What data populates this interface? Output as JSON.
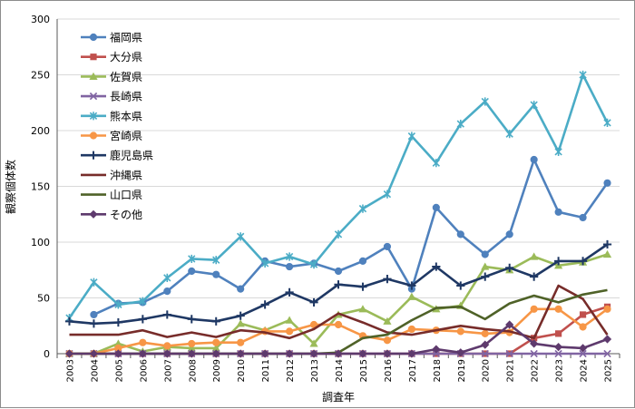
{
  "chart_data": {
    "type": "line",
    "xlabel": "調査年",
    "ylabel": "観察個体数",
    "ylim": [
      0,
      300
    ],
    "y_ticks": [
      0,
      50,
      100,
      150,
      200,
      250,
      300
    ],
    "grid": "horizontal",
    "legend_position": "top-left",
    "x": [
      "2003",
      "2004",
      "2005",
      "2006",
      "2007",
      "2008",
      "2009",
      "2010",
      "2011",
      "2012",
      "2013",
      "2014",
      "2015",
      "2016",
      "2017",
      "2018",
      "2019",
      "2020",
      "2021",
      "2022",
      "2023",
      "2024",
      "2025"
    ],
    "series": [
      {
        "name": "福岡県",
        "color": "#4f81bd",
        "marker": "circle",
        "values": [
          null,
          35,
          45,
          46,
          56,
          74,
          71,
          58,
          83,
          78,
          81,
          74,
          83,
          96,
          58,
          131,
          107,
          89,
          107,
          174,
          127,
          122,
          153
        ]
      },
      {
        "name": "大分県",
        "color": "#c0504d",
        "marker": "square",
        "values": [
          0,
          0,
          0,
          0,
          0,
          0,
          0,
          0,
          0,
          0,
          0,
          0,
          0,
          0,
          0,
          0,
          0,
          0,
          0,
          14,
          18,
          35,
          42
        ]
      },
      {
        "name": "佐賀県",
        "color": "#9bbb59",
        "marker": "triangle",
        "values": [
          0,
          0,
          9,
          2,
          6,
          5,
          5,
          27,
          21,
          30,
          9,
          35,
          40,
          29,
          51,
          40,
          43,
          78,
          75,
          87,
          79,
          82,
          89
        ]
      },
      {
        "name": "長崎県",
        "color": "#8064a2",
        "marker": "x",
        "values": [
          0,
          0,
          0,
          0,
          0,
          0,
          0,
          0,
          0,
          0,
          0,
          0,
          0,
          0,
          0,
          0,
          0,
          0,
          0,
          0,
          0,
          0,
          0
        ]
      },
      {
        "name": "熊本県",
        "color": "#4bacc6",
        "marker": "star",
        "values": [
          32,
          64,
          44,
          47,
          68,
          85,
          84,
          105,
          81,
          87,
          80,
          107,
          130,
          143,
          195,
          171,
          206,
          226,
          197,
          223,
          181,
          250,
          207
        ]
      },
      {
        "name": "宮崎県",
        "color": "#f79646",
        "marker": "circle",
        "values": [
          0,
          0,
          5,
          10,
          7,
          9,
          10,
          10,
          20,
          20,
          26,
          26,
          16,
          12,
          22,
          21,
          20,
          18,
          19,
          40,
          40,
          24,
          40
        ]
      },
      {
        "name": "鹿児島県",
        "color": "#1f3864",
        "marker": "plus",
        "values": [
          29,
          27,
          28,
          31,
          35,
          31,
          29,
          34,
          44,
          55,
          46,
          62,
          60,
          67,
          61,
          78,
          61,
          69,
          77,
          69,
          83,
          83,
          98
        ]
      },
      {
        "name": "沖縄県",
        "color": "#772c2a",
        "marker": "none",
        "values": [
          17,
          17,
          17,
          21,
          15,
          19,
          15,
          21,
          19,
          14,
          22,
          36,
          28,
          19,
          17,
          21,
          25,
          22,
          20,
          14,
          61,
          49,
          17
        ]
      },
      {
        "name": "山口県",
        "color": "#4f6228",
        "marker": "none",
        "values": [
          0,
          0,
          0,
          0,
          0,
          0,
          0,
          0,
          0,
          0,
          0,
          1,
          14,
          17,
          30,
          41,
          42,
          31,
          45,
          52,
          46,
          53,
          57
        ]
      },
      {
        "name": "その他",
        "color": "#5e3a6d",
        "marker": "diamond",
        "values": [
          0,
          0,
          0,
          0,
          0,
          0,
          0,
          0,
          0,
          0,
          0,
          0,
          0,
          0,
          0,
          4,
          1,
          8,
          26,
          9,
          6,
          5,
          13
        ]
      }
    ]
  }
}
